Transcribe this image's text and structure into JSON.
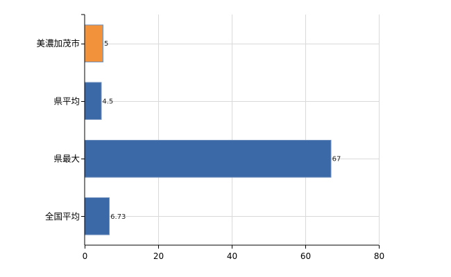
{
  "chart_data": {
    "type": "bar",
    "orientation": "horizontal",
    "categories": [
      "美濃加茂市",
      "県平均",
      "県最大",
      "全国平均"
    ],
    "values": [
      5,
      4.5,
      67,
      6.73
    ],
    "data_labels": [
      "5",
      "4.5",
      "67",
      "6.73"
    ],
    "highlight_index": 0,
    "colors": {
      "default": "#3b69a8",
      "highlight": "#f2923a"
    },
    "xlim": [
      0,
      80
    ],
    "xticks": [
      0,
      20,
      40,
      60,
      80
    ],
    "grid": true,
    "legend": "none"
  }
}
